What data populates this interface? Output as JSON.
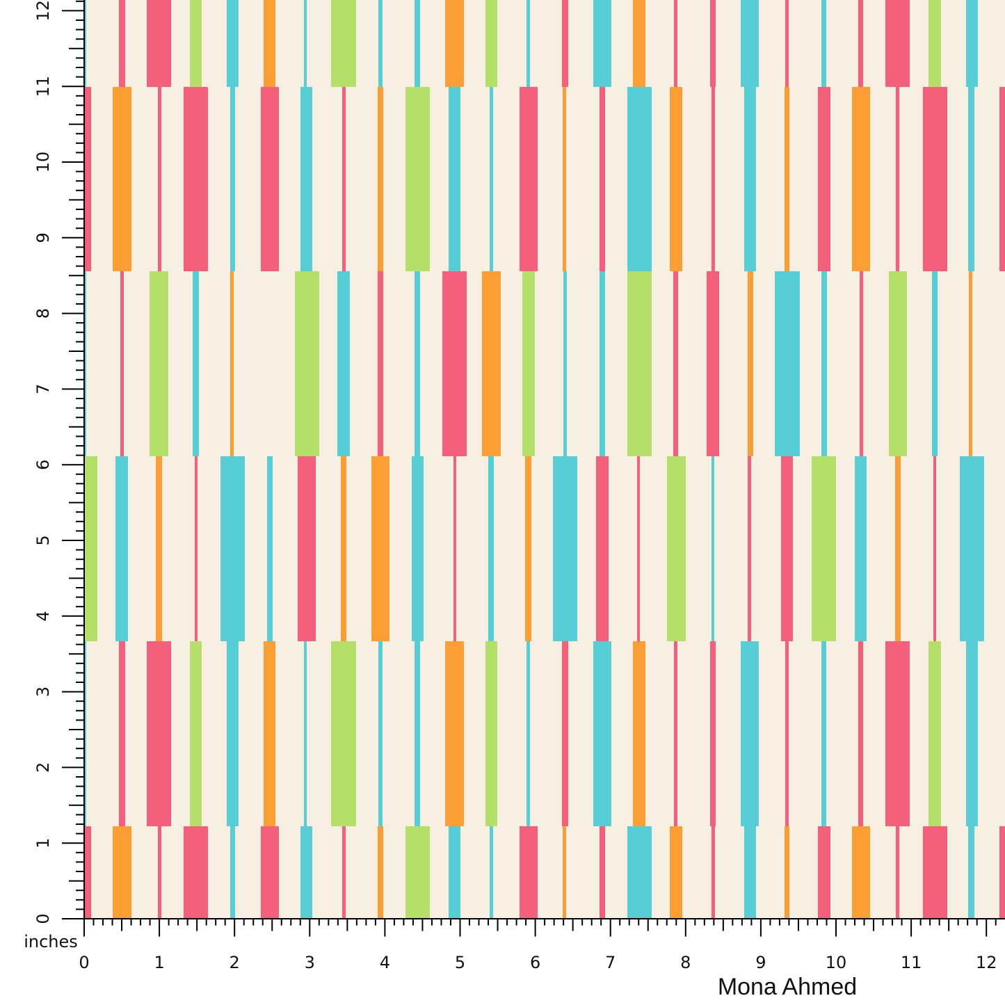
{
  "ruler": {
    "unit": "inches",
    "x_labels": [
      "0",
      "1",
      "2",
      "3",
      "4",
      "5",
      "6",
      "7",
      "8",
      "9",
      "10",
      "11",
      "12"
    ],
    "y_labels": [
      "0",
      "1",
      "2",
      "3",
      "4",
      "5",
      "6",
      "7",
      "8",
      "9",
      "10",
      "11",
      "12"
    ]
  },
  "designer": "Mona Ahmed"
}
